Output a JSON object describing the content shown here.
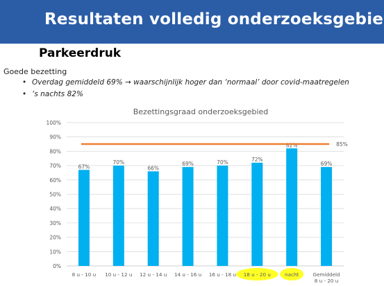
{
  "header": {
    "title": "Resultaten volledig onderzoeksgebied"
  },
  "section": {
    "title": "Parkeerdruk",
    "intro": "Goede bezetting",
    "bullets": [
      "Overdag gemiddeld 69%  → waarschijnlijk hoger dan ‘normaal’ door covid-maatregelen",
      "‘s nachts 82%"
    ]
  },
  "colors": {
    "banner": "#2b5da6",
    "bar": "#00b0f0",
    "reference_line": "#ed7d31",
    "highlight": "#ffff00"
  },
  "chart_data": {
    "type": "bar",
    "title": "Bezettingsgraad onderzoeksgebied",
    "categories": [
      "8 u - 10 u",
      "10 u - 12 u",
      "12 u - 14 u",
      "14 u - 16 u",
      "16 u - 18 u",
      "18 u - 20 u",
      "nacht",
      "Gemiddeld 8 u - 20 u"
    ],
    "category_lines": [
      [
        "8 u - 10 u"
      ],
      [
        "10 u - 12 u"
      ],
      [
        "12 u - 14 u"
      ],
      [
        "14 u - 16 u"
      ],
      [
        "16 u - 18 u"
      ],
      [
        "18 u - 20 u"
      ],
      [
        "nacht"
      ],
      [
        "Gemiddeld",
        "8 u - 20 u"
      ]
    ],
    "values": [
      67,
      70,
      66,
      69,
      70,
      72,
      82,
      69
    ],
    "data_labels": [
      "67%",
      "70%",
      "66%",
      "69%",
      "70%",
      "72%",
      "82%",
      "69%"
    ],
    "highlighted_categories": [
      "18 u - 20 u",
      "nacht"
    ],
    "reference_line": {
      "value": 85,
      "label": "85%"
    },
    "ylim": [
      0,
      100
    ],
    "yticks": [
      0,
      10,
      20,
      30,
      40,
      50,
      60,
      70,
      80,
      90,
      100
    ],
    "ytick_labels": [
      "0%",
      "10%",
      "20%",
      "30%",
      "40%",
      "50%",
      "60%",
      "70%",
      "80%",
      "90%",
      "100%"
    ],
    "xlabel": "",
    "ylabel": "",
    "grid": true,
    "legend": "none"
  }
}
